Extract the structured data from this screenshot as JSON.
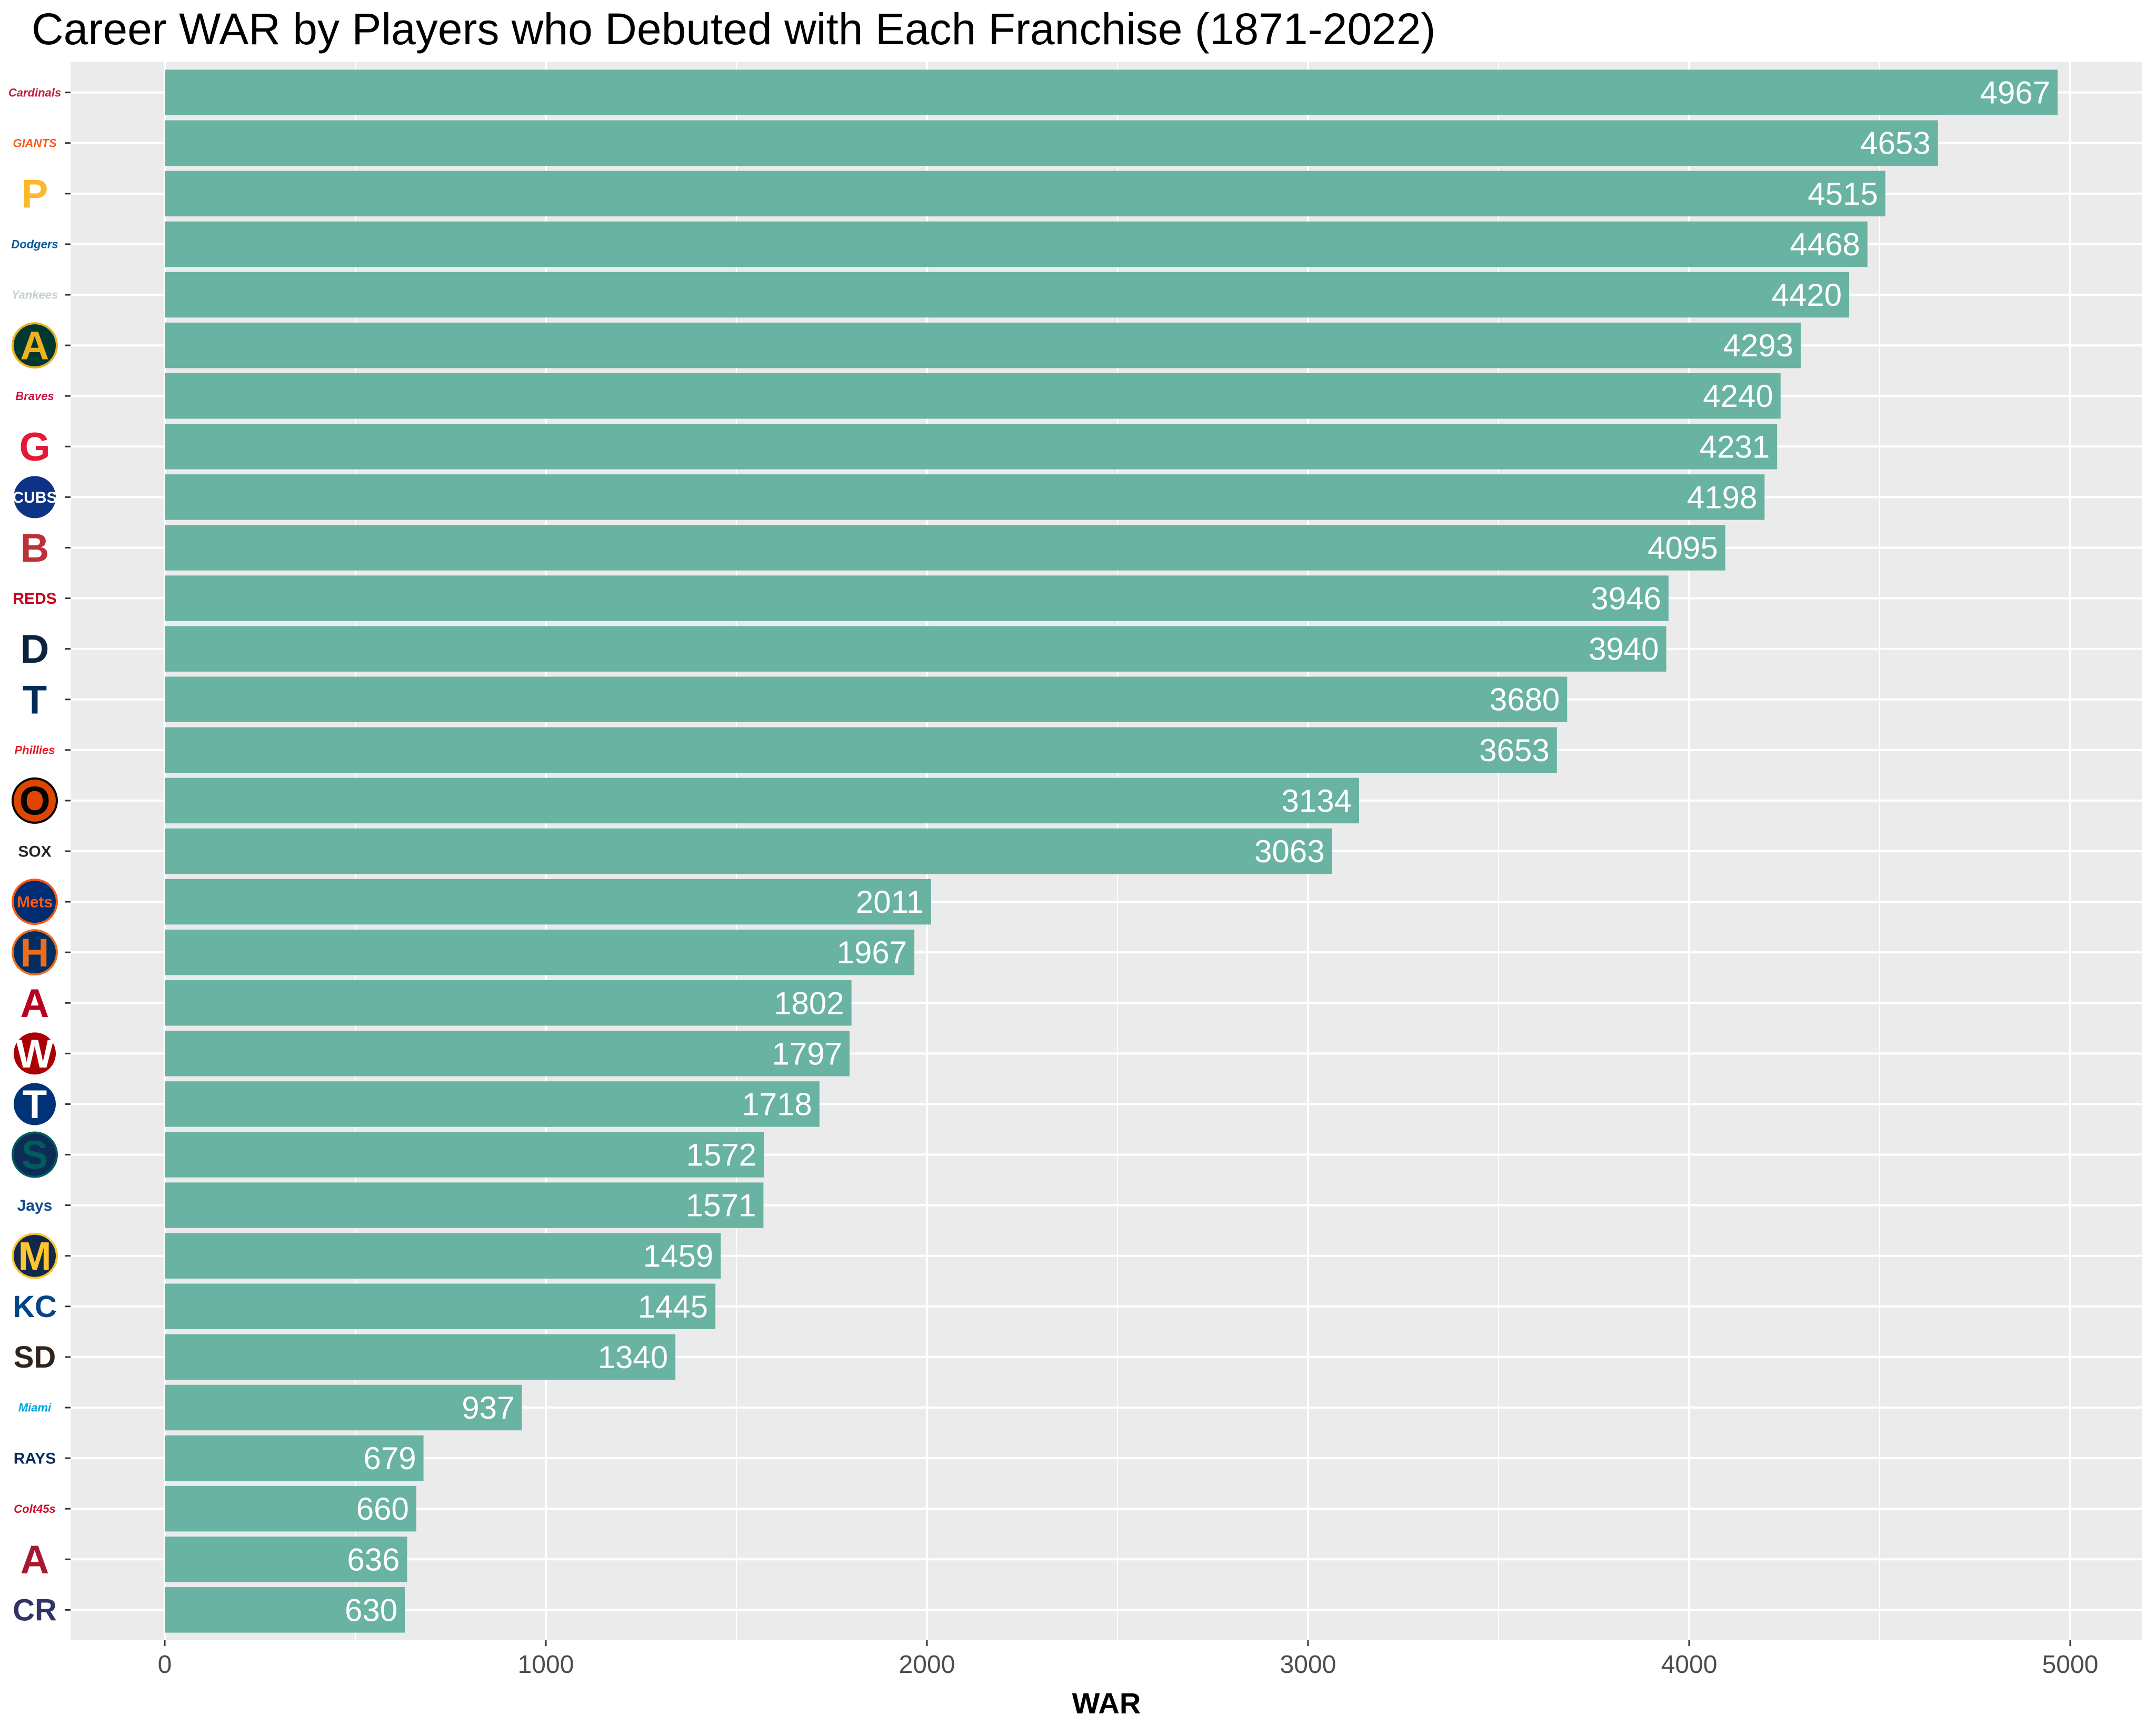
{
  "chart_data": {
    "type": "bar",
    "orientation": "horizontal",
    "title": "Career WAR by Players who Debuted with Each Franchise (1871-2022)",
    "xlabel": "WAR",
    "ylabel": "",
    "xlim": [
      0,
      5000
    ],
    "xticks": [
      0,
      1000,
      2000,
      3000,
      4000,
      5000
    ],
    "grid": true,
    "bar_color": "#69b3a2",
    "panel_color": "#ebebeb",
    "categories": [
      {
        "team": "Cardinals",
        "logo_text": "Cardinals",
        "logo_color": "#c41e3a",
        "logo_bg": "#ffffff"
      },
      {
        "team": "Giants",
        "logo_text": "GIANTS",
        "logo_color": "#fd5a1e",
        "logo_bg": "#ffffff"
      },
      {
        "team": "Pirates",
        "logo_text": "P",
        "logo_color": "#fdb827",
        "logo_bg": "#ffffff"
      },
      {
        "team": "Dodgers",
        "logo_text": "Dodgers",
        "logo_color": "#005a9c",
        "logo_bg": "#ffffff"
      },
      {
        "team": "Yankees",
        "logo_text": "Yankees",
        "logo_color": "#c4ced3",
        "logo_bg": "#ffffff"
      },
      {
        "team": "Athletics",
        "logo_text": "A",
        "logo_color": "#efb21e",
        "logo_bg": "#003831"
      },
      {
        "team": "Braves",
        "logo_text": "Braves",
        "logo_color": "#ce1141",
        "logo_bg": "#ffffff"
      },
      {
        "team": "Guardians",
        "logo_text": "G",
        "logo_color": "#e31937",
        "logo_bg": "#ffffff"
      },
      {
        "team": "Cubs",
        "logo_text": "CUBS",
        "logo_color": "#ffffff",
        "logo_bg": "#0e3386"
      },
      {
        "team": "Red Sox",
        "logo_text": "B",
        "logo_color": "#bd3039",
        "logo_bg": "#ffffff"
      },
      {
        "team": "Reds",
        "logo_text": "REDS",
        "logo_color": "#c6011f",
        "logo_bg": "#ffffff"
      },
      {
        "team": "Tigers",
        "logo_text": "D",
        "logo_color": "#0c2340",
        "logo_bg": "#ffffff"
      },
      {
        "team": "Twins",
        "logo_text": "T",
        "logo_color": "#002b5c",
        "logo_bg": "#ffffff"
      },
      {
        "team": "Phillies",
        "logo_text": "Phillies",
        "logo_color": "#e81828",
        "logo_bg": "#ffffff"
      },
      {
        "team": "Orioles",
        "logo_text": "O",
        "logo_color": "#000000",
        "logo_bg": "#df4601"
      },
      {
        "team": "White Sox",
        "logo_text": "SOX",
        "logo_color": "#27251f",
        "logo_bg": "#ffffff"
      },
      {
        "team": "Mets",
        "logo_text": "Mets",
        "logo_color": "#ff5910",
        "logo_bg": "#002d72"
      },
      {
        "team": "Astros",
        "logo_text": "H",
        "logo_color": "#eb6e1f",
        "logo_bg": "#002d62"
      },
      {
        "team": "Angels",
        "logo_text": "A",
        "logo_color": "#ba0021",
        "logo_bg": "#ffffff"
      },
      {
        "team": "Nationals",
        "logo_text": "W",
        "logo_color": "#ffffff",
        "logo_bg": "#ab0003"
      },
      {
        "team": "Rangers",
        "logo_text": "T",
        "logo_color": "#ffffff",
        "logo_bg": "#003278"
      },
      {
        "team": "Mariners",
        "logo_text": "S",
        "logo_color": "#005c5c",
        "logo_bg": "#0c2c56"
      },
      {
        "team": "Blue Jays",
        "logo_text": "Jays",
        "logo_color": "#134a8e",
        "logo_bg": "#ffffff"
      },
      {
        "team": "Brewers",
        "logo_text": "M",
        "logo_color": "#ffc52f",
        "logo_bg": "#12284b"
      },
      {
        "team": "Royals",
        "logo_text": "KC",
        "logo_color": "#004687",
        "logo_bg": "#ffffff"
      },
      {
        "team": "Padres",
        "logo_text": "SD",
        "logo_color": "#2f241d",
        "logo_bg": "#ffffff"
      },
      {
        "team": "Marlins",
        "logo_text": "Miami",
        "logo_color": "#00a3e0",
        "logo_bg": "#ffffff"
      },
      {
        "team": "Rays",
        "logo_text": "RAYS",
        "logo_color": "#092c5c",
        "logo_bg": "#ffffff"
      },
      {
        "team": "Colt .45s",
        "logo_text": "Colt45s",
        "logo_color": "#c8102e",
        "logo_bg": "#ffffff"
      },
      {
        "team": "Diamondbacks",
        "logo_text": "A",
        "logo_color": "#a71930",
        "logo_bg": "#ffffff"
      },
      {
        "team": "Rockies",
        "logo_text": "CR",
        "logo_color": "#333366",
        "logo_bg": "#ffffff"
      }
    ],
    "values": [
      4967,
      4653,
      4515,
      4468,
      4420,
      4293,
      4240,
      4231,
      4198,
      4095,
      3946,
      3940,
      3680,
      3653,
      3134,
      3063,
      2011,
      1967,
      1802,
      1797,
      1718,
      1572,
      1571,
      1459,
      1445,
      1340,
      937,
      679,
      660,
      636,
      630
    ]
  }
}
